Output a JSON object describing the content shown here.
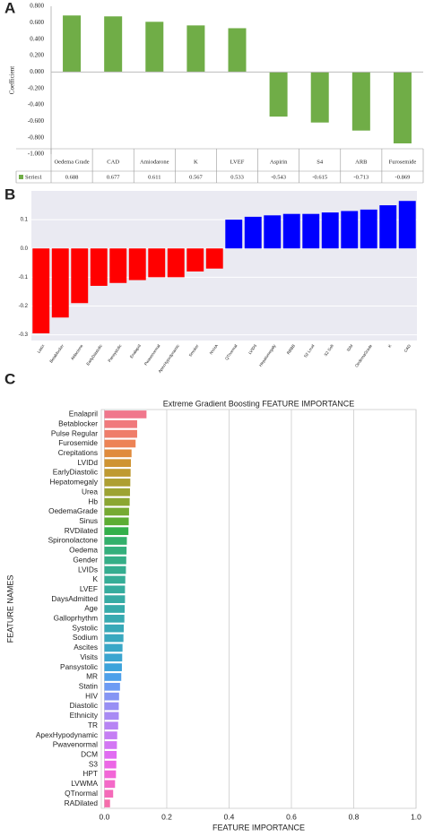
{
  "chart_data": [
    {
      "type": "bar",
      "panel": "A",
      "ylabel": "Coefficient",
      "data_table": true,
      "categories": [
        "Oedema Grade",
        "CAD",
        "Amiodarone",
        "K",
        "LVEF",
        "Aspirin",
        "S4",
        "ARB",
        "Furosemide"
      ],
      "series": [
        {
          "name": "Series1",
          "color": "#70ad47",
          "values": [
            0.688,
            0.677,
            0.611,
            0.567,
            0.533,
            -0.543,
            -0.615,
            -0.713,
            -0.869
          ]
        }
      ],
      "ylim": [
        -1,
        0.8
      ],
      "yticks": [
        {
          "value": 0.8,
          "label": "0.800"
        },
        {
          "value": 0.6,
          "label": "0.600"
        },
        {
          "value": 0.4,
          "label": "0.400"
        },
        {
          "value": 0.2,
          "label": "0.200"
        },
        {
          "value": 0,
          "label": "0.000"
        },
        {
          "value": -0.2,
          "label": "-0.200"
        },
        {
          "value": -0.4,
          "label": "-0.400"
        },
        {
          "value": -0.6,
          "label": "-0.600"
        },
        {
          "value": -0.8,
          "label": "-0.800"
        },
        {
          "value": -1,
          "label": "-1.000"
        }
      ]
    },
    {
      "type": "bar",
      "panel": "B",
      "grid": true,
      "categories": [
        "Lasix",
        "Betablocker",
        "Aldactone",
        "EarlyDiastolic",
        "Pansystolic",
        "Enalapril",
        "Pwavenormal",
        "ApexHypodynamic",
        "Smoker",
        "NYHA",
        "QTnormal",
        "LVIDd",
        "Hepatomegaly",
        "RBBB",
        "S2 Loud",
        "S2 Soft",
        "IDM",
        "OedemaGrade",
        "K",
        "CAD"
      ],
      "values": [
        -0.295,
        -0.24,
        -0.19,
        -0.13,
        -0.12,
        -0.11,
        -0.1,
        -0.1,
        -0.08,
        -0.07,
        0.1,
        0.11,
        0.115,
        0.12,
        0.12,
        0.125,
        0.13,
        0.135,
        0.15,
        0.165
      ],
      "colors": [
        "#ff0000",
        "#ff0000",
        "#ff0000",
        "#ff0000",
        "#ff0000",
        "#ff0000",
        "#ff0000",
        "#ff0000",
        "#ff0000",
        "#ff0000",
        "#0000ff",
        "#0000ff",
        "#0000ff",
        "#0000ff",
        "#0000ff",
        "#0000ff",
        "#0000ff",
        "#0000ff",
        "#0000ff",
        "#0000ff"
      ],
      "ylim": [
        -0.32,
        0.2
      ],
      "yticks": [
        0.1,
        {
          "value": 0,
          "label": "0.0"
        },
        -0.1,
        -0.2,
        -0.3
      ]
    },
    {
      "type": "barh",
      "panel": "C",
      "grid": true,
      "title": "Extreme Gradient Boosting FEATURE IMPORTANCE",
      "xlabel": "FEATURE IMPORTANCE",
      "ylabel": "FEATURE NAMES",
      "categories": [
        "Enalapril",
        "Betablocker",
        "Pulse Regular",
        "Furosemide",
        "Crepitations",
        "LVIDd",
        "EarlyDiastolic",
        "Hepatomegaly",
        "Urea",
        "Hb",
        "OedemaGrade",
        "Sinus",
        "RVDilated",
        "Spironolactone",
        "Oedema",
        "Gender",
        "LVIDs",
        "K",
        "LVEF",
        "DaysAdmitted",
        "Age",
        "Galloprhythm",
        "Systolic",
        "Sodium",
        "Ascites",
        "Visits",
        "Pansystolic",
        "MR",
        "Statin",
        "HIV",
        "Diastolic",
        "Ethnicity",
        "TR",
        "ApexHypodynamic",
        "Pwavenormal",
        "DCM",
        "S3",
        "HPT",
        "LVWMA",
        "QTnormal",
        "RADilated"
      ],
      "values": [
        0.135,
        0.105,
        0.105,
        0.1,
        0.087,
        0.085,
        0.084,
        0.083,
        0.082,
        0.081,
        0.079,
        0.078,
        0.077,
        0.072,
        0.071,
        0.07,
        0.069,
        0.067,
        0.066,
        0.066,
        0.065,
        0.064,
        0.062,
        0.061,
        0.058,
        0.057,
        0.056,
        0.054,
        0.05,
        0.047,
        0.046,
        0.046,
        0.044,
        0.041,
        0.04,
        0.039,
        0.038,
        0.037,
        0.034,
        0.028,
        0.018
      ],
      "colors": [
        "#f0778c",
        "#f0797c",
        "#ef7d6a",
        "#ed8355",
        "#e08b3c",
        "#cf9433",
        "#bf9a32",
        "#ae9f32",
        "#9da332",
        "#8ba632",
        "#76aa32",
        "#5cad32",
        "#33b04a",
        "#33b06b",
        "#34af7c",
        "#35ae87",
        "#35ad90",
        "#36ad97",
        "#36ac9e",
        "#37aba4",
        "#37abaa",
        "#38aab1",
        "#38a9b8",
        "#39a8bf",
        "#3aa7c7",
        "#3ba5d0",
        "#3ca3db",
        "#4da0ea",
        "#6d9bf4",
        "#8595f4",
        "#988ff4",
        "#a88af4",
        "#b784f4",
        "#c57ef4",
        "#d376f4",
        "#e16cf2",
        "#ec66e6",
        "#f266d7",
        "#f468c8",
        "#f56ab9",
        "#f56dab"
      ],
      "xlim": [
        -0.01,
        1.0
      ],
      "xticks": [
        {
          "value": 0,
          "label": "0.0"
        },
        0.2,
        0.4,
        0.6,
        0.8,
        {
          "value": 1,
          "label": "1.0"
        }
      ]
    }
  ]
}
